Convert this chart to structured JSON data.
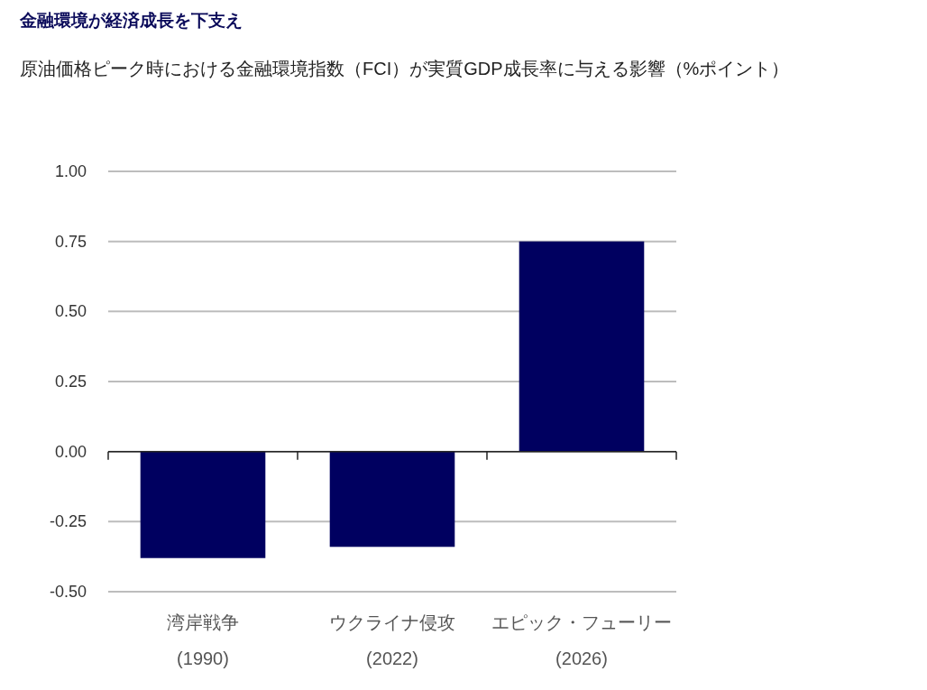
{
  "chart_data": {
    "type": "bar",
    "title": "金融環境が経済成長を下支え",
    "subtitle": "原油価格ピーク時における金融環境指数（FCI）が実質GDP成長率に与える影響（%ポイント）",
    "categories": [
      "湾岸戦争\n(1990)",
      "ウクライナ侵攻\n(2022)",
      "エピック・フューリー\n(2026)"
    ],
    "values": [
      -0.38,
      -0.34,
      0.75
    ],
    "color": "#000060",
    "ylim": [
      -0.5,
      1.0
    ],
    "yticks": [
      {
        "value": -0.5,
        "label": "-0.50"
      },
      {
        "value": -0.25,
        "label": "-0.25"
      },
      {
        "value": 0,
        "label": "0.00"
      },
      {
        "value": 0.25,
        "label": "0.25"
      },
      {
        "value": 0.5,
        "label": "0.50"
      },
      {
        "value": 0.75,
        "label": "0.75"
      },
      {
        "value": 1.0,
        "label": "1.00"
      }
    ],
    "grid": "y"
  }
}
